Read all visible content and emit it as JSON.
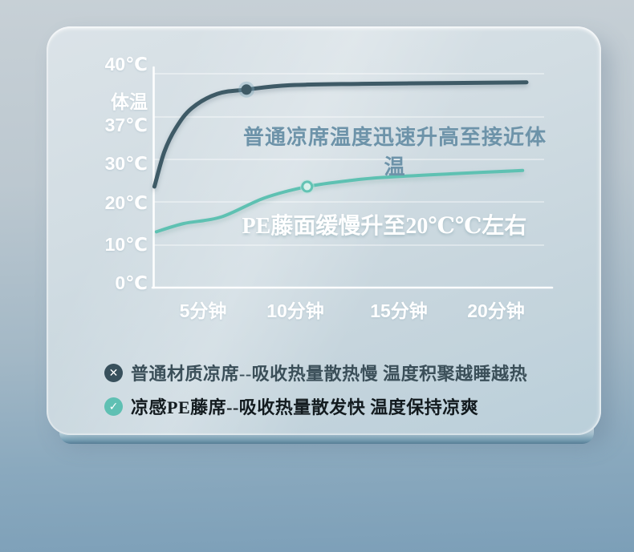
{
  "chart_data": {
    "type": "line",
    "title": "",
    "xlabel": "",
    "ylabel": "",
    "y_axis_unit": "℃",
    "y_tick_labels": [
      "40℃",
      "37℃",
      "30℃",
      "20℃",
      "10℃",
      "0℃"
    ],
    "y_tick_values": [
      40,
      37,
      30,
      20,
      10,
      0
    ],
    "y_axis_extra_label": "体温",
    "x_tick_labels": [
      "5分钟",
      "10分钟",
      "15分钟",
      "20分钟"
    ],
    "x_tick_minutes": [
      5,
      10,
      15,
      20
    ],
    "ylim": [
      0,
      40
    ],
    "xlim_minutes": [
      0,
      22
    ],
    "grid": "horizontal-only",
    "legend_position": "bottom-left",
    "series": [
      {
        "name": "普通材质凉席",
        "annotation": "普通凉席温度迅速升高至接近体温",
        "color": "#3e5a66",
        "marker": [
          7.3,
          38.9
        ],
        "points_min_celsius": [
          [
            2.6,
            23.6
          ],
          [
            3.1,
            31.2
          ],
          [
            3.7,
            35.2
          ],
          [
            4.5,
            37.6
          ],
          [
            5.8,
            38.6
          ],
          [
            7.3,
            38.9
          ],
          [
            9.5,
            39.2
          ],
          [
            13.2,
            39.3
          ],
          [
            17.3,
            39.35
          ],
          [
            21.6,
            39.4
          ]
        ]
      },
      {
        "name": "凉感PE藤席",
        "annotation": "PE藤面缓慢升至20℃℃左右",
        "color": "#5ec1b2",
        "marker": [
          10.4,
          23.6
        ],
        "points_min_celsius": [
          [
            2.7,
            13.1
          ],
          [
            4.1,
            15.0
          ],
          [
            6.0,
            16.5
          ],
          [
            8.2,
            20.9
          ],
          [
            10.4,
            23.6
          ],
          [
            12.7,
            25.1
          ],
          [
            14.4,
            25.8
          ],
          [
            17.7,
            26.6
          ],
          [
            21.4,
            27.4
          ]
        ]
      }
    ]
  },
  "legend": {
    "items": [
      {
        "icon": "x-circle-icon",
        "symbol": "✕",
        "color": "#38505c",
        "text": "普通材质凉席--吸收热量散热慢 温度积聚越睡越热"
      },
      {
        "icon": "check-circle-icon",
        "symbol": "✓",
        "color": "#5fc0b3",
        "text": "凉感PE藤席--吸收热量散发快 温度保持凉爽"
      }
    ]
  },
  "colors": {
    "background_top": "#c7d0d6",
    "background_bottom": "#7c9fb8",
    "panel": "#cfdae1",
    "axis_text": "#ffffff",
    "annotation_normal": "#6d93a9",
    "annotation_pe": "#ffffff",
    "series_normal": "#3e5a66",
    "series_pe": "#5ec1b2"
  }
}
